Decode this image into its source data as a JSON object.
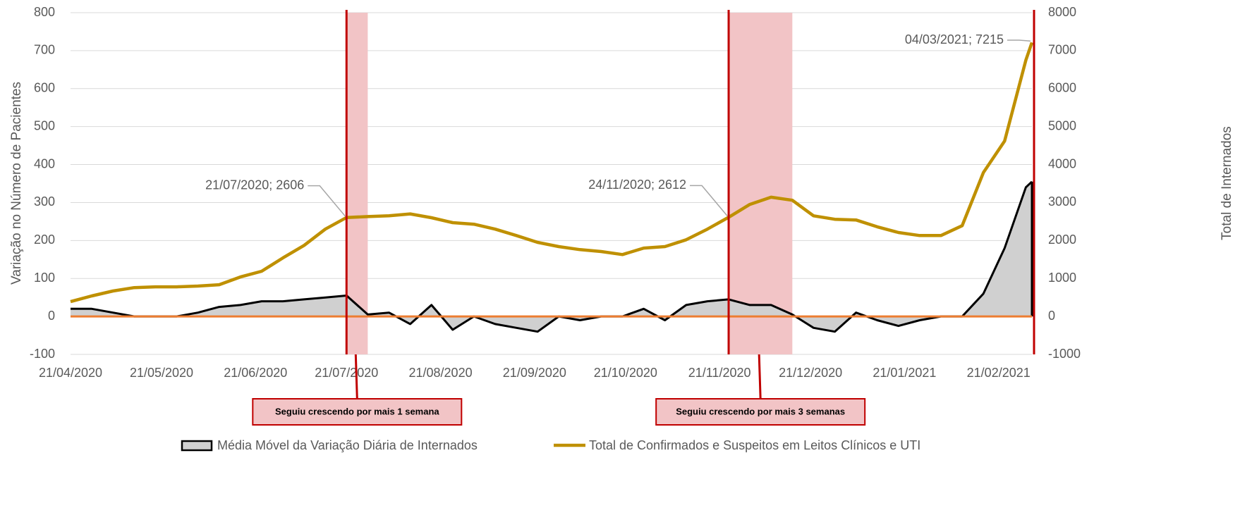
{
  "chart_data": {
    "type": "line",
    "y_label": "Variação no Número de Pacientes",
    "y2_label": "Total de Internados",
    "x": [
      "21/04/2020",
      "28/04/2020",
      "05/05/2020",
      "12/05/2020",
      "19/05/2020",
      "26/05/2020",
      "02/06/2020",
      "09/06/2020",
      "16/06/2020",
      "23/06/2020",
      "30/06/2020",
      "07/07/2020",
      "14/07/2020",
      "21/07/2020",
      "28/07/2020",
      "04/08/2020",
      "11/08/2020",
      "18/08/2020",
      "25/08/2020",
      "01/09/2020",
      "08/09/2020",
      "15/09/2020",
      "22/09/2020",
      "29/09/2020",
      "06/10/2020",
      "13/10/2020",
      "20/10/2020",
      "27/10/2020",
      "03/11/2020",
      "10/11/2020",
      "17/11/2020",
      "24/11/2020",
      "01/12/2020",
      "08/12/2020",
      "15/12/2020",
      "22/12/2020",
      "29/12/2020",
      "05/01/2021",
      "12/01/2021",
      "19/01/2021",
      "26/01/2021",
      "02/02/2021",
      "09/02/2021",
      "16/02/2021",
      "23/02/2021",
      "02/03/2021",
      "04/03/2021"
    ],
    "xlim": [
      "21/04/2020",
      "04/03/2021"
    ],
    "xticks": [
      "21/04/2020",
      "21/05/2020",
      "21/06/2020",
      "21/07/2020",
      "21/08/2020",
      "21/09/2020",
      "21/10/2020",
      "21/11/2020",
      "21/12/2020",
      "21/01/2021",
      "21/02/2021"
    ],
    "series": [
      {
        "name": "Média Móvel da Variação Diária de Internados",
        "color": "#000000",
        "fill": "#d0d0d0",
        "axis": "y",
        "values": [
          20,
          20,
          10,
          0,
          0,
          0,
          10,
          25,
          30,
          40,
          40,
          45,
          50,
          55,
          5,
          10,
          -20,
          30,
          -35,
          0,
          -20,
          -30,
          -40,
          0,
          -10,
          0,
          0,
          20,
          -10,
          30,
          40,
          45,
          30,
          30,
          5,
          -30,
          -40,
          10,
          -10,
          -25,
          -10,
          0,
          0,
          60,
          180,
          340,
          355
        ]
      },
      {
        "name": "Total de Confirmados e Suspeitos em Leitos Clínicos e UTI",
        "color": "#bf9000",
        "axis": "y2",
        "values": [
          390,
          540,
          670,
          760,
          780,
          780,
          800,
          835,
          1040,
          1190,
          1540,
          1870,
          2300,
          2606,
          2630,
          2650,
          2700,
          2600,
          2470,
          2430,
          2300,
          2130,
          1950,
          1840,
          1760,
          1710,
          1630,
          1800,
          1840,
          2020,
          2300,
          2612,
          2950,
          3140,
          3060,
          2650,
          2560,
          2540,
          2360,
          2210,
          2130,
          2130,
          2390,
          3790,
          4620,
          6750,
          7215
        ]
      }
    ],
    "ylim": [
      -100,
      800
    ],
    "yticks": [
      -100,
      0,
      100,
      200,
      300,
      400,
      500,
      600,
      700,
      800
    ],
    "y2lim": [
      -1000,
      8000
    ],
    "y2ticks": [
      -1000,
      0,
      1000,
      2000,
      3000,
      4000,
      5000,
      6000,
      7000,
      8000
    ],
    "grid": true,
    "reference_line": {
      "value": 0,
      "color": "#ed7d31"
    },
    "point_labels": [
      {
        "x": "21/07/2020",
        "text": "21/07/2020; 2606"
      },
      {
        "x": "24/11/2020",
        "text": "24/11/2020; 2612"
      },
      {
        "x": "04/03/2021",
        "text": "04/03/2021; 7215"
      }
    ],
    "events": [
      {
        "start": "21/07/2020",
        "end": "28/07/2020",
        "label": "Seguiu crescendo por mais 1 semana"
      },
      {
        "start": "24/11/2020",
        "end": "15/12/2020",
        "label": "Seguiu crescendo por mais 3 semanas"
      }
    ],
    "event_color": "#c00000",
    "event_shade": "#f2c4c6",
    "legend": "bottom"
  }
}
